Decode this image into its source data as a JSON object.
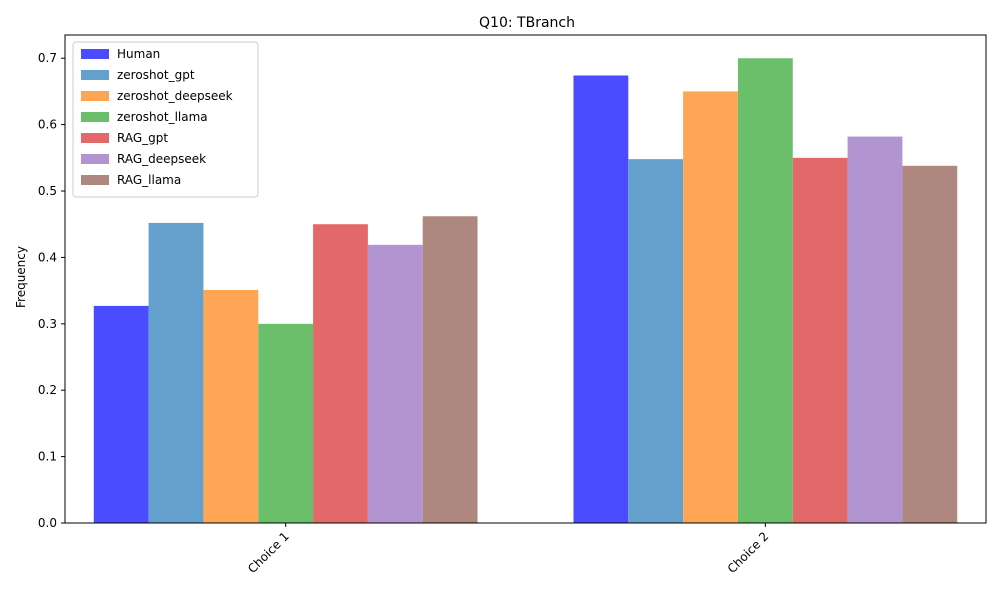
{
  "chart_data": {
    "type": "bar",
    "title": "Q10: TBranch",
    "xlabel": "",
    "ylabel": "Frequency",
    "categories": [
      "Choice 1",
      "Choice 2"
    ],
    "ylim": [
      0,
      0.735
    ],
    "yticks": [
      0.0,
      0.1,
      0.2,
      0.3,
      0.4,
      0.5,
      0.6,
      0.7
    ],
    "ytick_labels": [
      "0.0",
      "0.1",
      "0.2",
      "0.3",
      "0.4",
      "0.5",
      "0.6",
      "0.7"
    ],
    "legend_position": "top-left",
    "grid": false,
    "series": [
      {
        "name": "Human",
        "color": "#4b4bff",
        "values": [
          0.327,
          0.674
        ]
      },
      {
        "name": "zeroshot_gpt",
        "color": "#63a0cb",
        "values": [
          0.452,
          0.548
        ]
      },
      {
        "name": "zeroshot_deepseek",
        "color": "#ffa556",
        "values": [
          0.351,
          0.65
        ]
      },
      {
        "name": "zeroshot_llama",
        "color": "#6bbe6a",
        "values": [
          0.3,
          0.7
        ]
      },
      {
        "name": "RAG_gpt",
        "color": "#e26869",
        "values": [
          0.45,
          0.55
        ]
      },
      {
        "name": "RAG_deepseek",
        "color": "#b294d0",
        "values": [
          0.419,
          0.582
        ]
      },
      {
        "name": "RAG_llama",
        "color": "#ae877f",
        "values": [
          0.462,
          0.538
        ]
      }
    ]
  }
}
